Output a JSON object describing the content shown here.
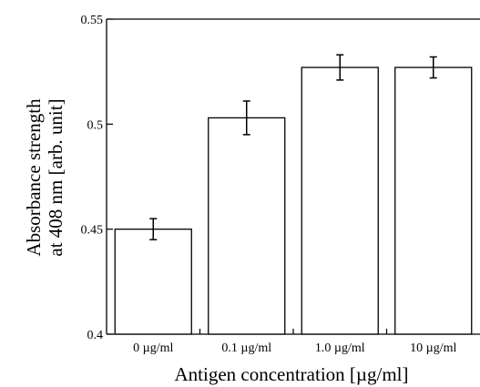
{
  "chart_data": {
    "type": "bar",
    "title": "",
    "xlabel": "Antigen concentration [µg/ml]",
    "ylabel_lines": [
      "Absorbance strength",
      "at 408 nm [arb. unit]"
    ],
    "categories": [
      "0 µg/ml",
      "0.1 µg/ml",
      "1.0 µg/ml",
      "10 µg/ml"
    ],
    "values": [
      0.45,
      0.503,
      0.527,
      0.527
    ],
    "errors": [
      0.005,
      0.008,
      0.006,
      0.005
    ],
    "ylim": [
      0.4,
      0.55
    ],
    "yticks": [
      0.4,
      0.45,
      0.5,
      0.55
    ],
    "ytick_labels": [
      "0.4",
      "0.45",
      "0.5",
      "0.55"
    ],
    "grid": false,
    "legend": "none",
    "bar_color": "#ffffff",
    "edge_color": "#000000"
  }
}
